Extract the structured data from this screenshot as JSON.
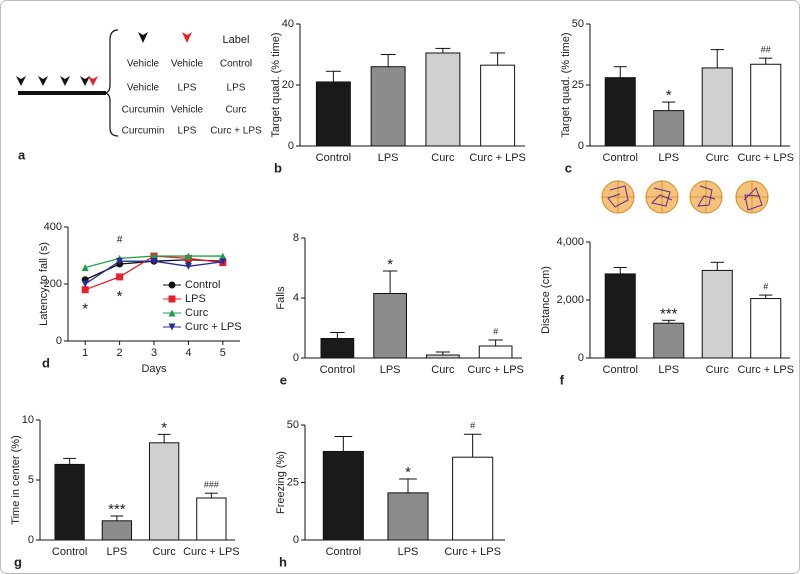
{
  "panel_a": {
    "panel": "a",
    "header": "Label",
    "rows": [
      [
        "Vehicle",
        "Vehicle",
        "Control"
      ],
      [
        "Vehicle",
        "LPS",
        "LPS"
      ],
      [
        "Curcumin",
        "Vehicle",
        "Curc"
      ],
      [
        "Curcumin",
        "LPS",
        "Curc + LPS"
      ]
    ]
  },
  "chart_data": [
    {
      "type": "bar",
      "panel": "b",
      "y_label": "Target quad. (% time)",
      "categories": [
        "Control",
        "LPS",
        "Curc",
        "Curc + LPS"
      ],
      "values": [
        21,
        26,
        30.5,
        26.5
      ],
      "errors": [
        3.5,
        4,
        1.5,
        4
      ],
      "colors": [
        "#1a1a1a",
        "#8c8c8c",
        "#d0d0d0",
        "#ffffff"
      ],
      "ylim": [
        0,
        40
      ],
      "yticks": [
        0,
        20,
        40
      ]
    },
    {
      "type": "bar",
      "panel": "c",
      "y_label": "Target quad. (% time)",
      "categories": [
        "Control",
        "LPS",
        "Curc",
        "Curc + LPS"
      ],
      "values": [
        28,
        14.5,
        32,
        33.5
      ],
      "errors": [
        4.5,
        3.5,
        7.5,
        2.5
      ],
      "colors": [
        "#1a1a1a",
        "#8c8c8c",
        "#d0d0d0",
        "#ffffff"
      ],
      "annotations": [
        null,
        "*",
        null,
        "##"
      ],
      "ylim": [
        0,
        50
      ],
      "yticks": [
        0,
        25,
        50
      ]
    },
    {
      "type": "line",
      "panel": "d",
      "y_label": "Latency to fall (s)",
      "x_label": "Days",
      "x": [
        1,
        2,
        3,
        4,
        5
      ],
      "series": [
        {
          "name": "Control",
          "color": "#111111",
          "marker": "circle",
          "values": [
            215,
            270,
            280,
            285,
            280
          ]
        },
        {
          "name": "LPS",
          "color": "#e8202a",
          "marker": "square",
          "values": [
            180,
            225,
            298,
            290,
            275
          ]
        },
        {
          "name": "Curc",
          "color": "#1ea04a",
          "marker": "triangle-up",
          "values": [
            258,
            290,
            298,
            298,
            298
          ]
        },
        {
          "name": "Curc + LPS",
          "color": "#2a2a9a",
          "marker": "triangle-down",
          "values": [
            200,
            280,
            280,
            262,
            278
          ]
        }
      ],
      "annotations_above": [
        null,
        "#",
        null,
        null,
        null
      ],
      "annotations_below": [
        "*",
        "*",
        null,
        null,
        null
      ],
      "xlim": [
        0.5,
        5.5
      ],
      "xticks": [
        1,
        2,
        3,
        4,
        5
      ],
      "ylim": [
        0,
        400
      ],
      "yticks": [
        0,
        200,
        400
      ]
    },
    {
      "type": "bar",
      "panel": "e",
      "y_label": "Falls",
      "categories": [
        "Control",
        "LPS",
        "Curc",
        "Curc + LPS"
      ],
      "values": [
        1.3,
        4.3,
        0.2,
        0.8
      ],
      "errors": [
        0.4,
        1.5,
        0.2,
        0.4
      ],
      "colors": [
        "#1a1a1a",
        "#8c8c8c",
        "#d0d0d0",
        "#ffffff"
      ],
      "annotations": [
        null,
        "*",
        null,
        "#"
      ],
      "ylim": [
        0,
        8
      ],
      "yticks": [
        0,
        4,
        8
      ]
    },
    {
      "type": "bar",
      "panel": "f",
      "y_label": "Distance (cm)",
      "categories": [
        "Control",
        "LPS",
        "Curc",
        "Curc + LPS"
      ],
      "values": [
        2900,
        1200,
        3020,
        2050
      ],
      "errors": [
        220,
        100,
        280,
        120
      ],
      "colors": [
        "#1a1a1a",
        "#8c8c8c",
        "#d0d0d0",
        "#ffffff"
      ],
      "annotations": [
        null,
        "***",
        null,
        "#"
      ],
      "ylim": [
        0,
        4000
      ],
      "yticks": [
        0,
        {
          "value": 2000,
          "label": "2,000"
        },
        {
          "value": 4000,
          "label": "4,000"
        }
      ]
    },
    {
      "type": "bar",
      "panel": "g",
      "y_label": "Time in center (%)",
      "categories": [
        "Control",
        "LPS",
        "Curc",
        "Curc + LPS"
      ],
      "values": [
        6.3,
        1.6,
        8.1,
        3.5
      ],
      "errors": [
        0.5,
        0.4,
        0.7,
        0.4
      ],
      "colors": [
        "#1a1a1a",
        "#8c8c8c",
        "#d0d0d0",
        "#ffffff"
      ],
      "annotations": [
        null,
        "***",
        "*",
        "###"
      ],
      "ylim": [
        0,
        10
      ],
      "yticks": [
        0,
        5,
        10
      ]
    },
    {
      "type": "bar",
      "panel": "h",
      "y_label": "Freezing (%)",
      "categories": [
        "Control",
        "LPS",
        "Curc + LPS"
      ],
      "values": [
        38.5,
        20.5,
        36
      ],
      "errors": [
        6.5,
        6,
        10
      ],
      "colors": [
        "#1a1a1a",
        "#8c8c8c",
        "#ffffff"
      ],
      "annotations": [
        null,
        "*",
        "#"
      ],
      "ylim": [
        0,
        50
      ],
      "yticks": [
        0,
        25,
        50
      ]
    }
  ]
}
